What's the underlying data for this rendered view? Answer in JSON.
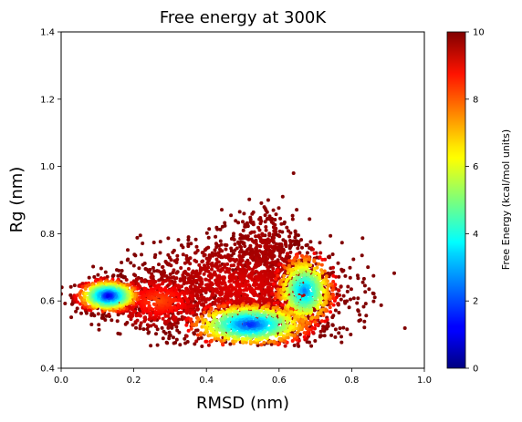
{
  "chart_data": {
    "type": "scatter",
    "title": "Free energy at 300K",
    "xlabel": "RMSD (nm)",
    "ylabel": "Rg (nm)",
    "xlim": [
      0.0,
      1.0
    ],
    "ylim": [
      0.4,
      1.4
    ],
    "xticks": [
      "0.0",
      "0.2",
      "0.4",
      "0.6",
      "0.8",
      "1.0"
    ],
    "yticks": [
      "0.4",
      "0.6",
      "0.8",
      "1.0",
      "1.2",
      "1.4"
    ],
    "grid": false,
    "colorbar": {
      "label": "Free Energy (kcal/mol units)",
      "range": [
        0,
        10
      ],
      "ticks": [
        "0",
        "2",
        "4",
        "6",
        "8",
        "10"
      ],
      "colormap": "jet"
    },
    "clusters": [
      {
        "center": [
          0.13,
          0.615
        ],
        "spread": [
          0.045,
          0.025
        ],
        "value_min": 1.0,
        "value_max": 10,
        "n": 700
      },
      {
        "center": [
          0.52,
          0.53
        ],
        "spread": [
          0.09,
          0.035
        ],
        "value_min": 1.5,
        "value_max": 10,
        "n": 900
      },
      {
        "center": [
          0.67,
          0.63
        ],
        "spread": [
          0.045,
          0.06
        ],
        "value_min": 2.5,
        "value_max": 10,
        "n": 600
      },
      {
        "center": [
          0.5,
          0.64
        ],
        "spread": [
          0.14,
          0.07
        ],
        "value_min": 9,
        "value_max": 10,
        "n": 1500
      },
      {
        "center": [
          0.56,
          0.76
        ],
        "spread": [
          0.05,
          0.06
        ],
        "value_min": 9.5,
        "value_max": 10,
        "n": 300
      },
      {
        "center": [
          0.27,
          0.6
        ],
        "spread": [
          0.07,
          0.04
        ],
        "value_min": 8,
        "value_max": 10,
        "n": 500
      }
    ],
    "outliers": [
      [
        0.64,
        0.98
      ],
      [
        0.61,
        0.91
      ],
      [
        0.57,
        0.9
      ],
      [
        0.35,
        0.77
      ],
      [
        0.35,
        0.72
      ],
      [
        0.72,
        0.58
      ],
      [
        0.76,
        0.62
      ]
    ]
  }
}
